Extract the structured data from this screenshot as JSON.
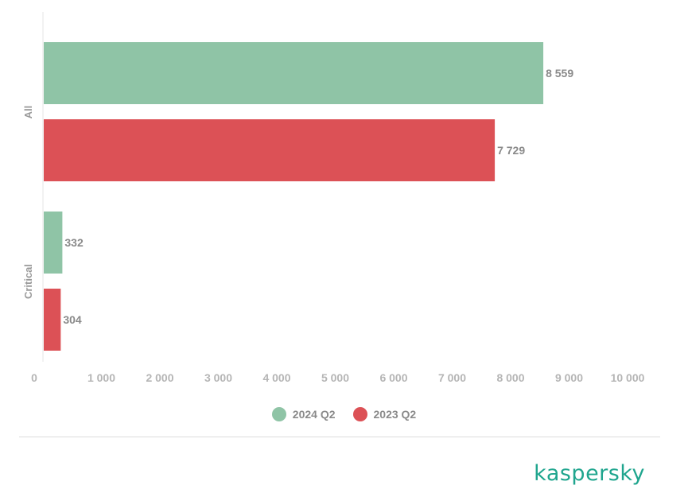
{
  "chart_data": {
    "type": "bar",
    "orientation": "horizontal",
    "categories": [
      "All",
      "Critical"
    ],
    "series": [
      {
        "name": "2024 Q2",
        "values": [
          8559,
          332
        ],
        "labels": [
          "8 559",
          "332"
        ],
        "color": "#8fc4a6"
      },
      {
        "name": "2023 Q2",
        "values": [
          7729,
          304
        ],
        "labels": [
          "7 729",
          "304"
        ],
        "color": "#dc5156"
      }
    ],
    "xlim": [
      0,
      10000
    ],
    "x_ticks": [
      0,
      1000,
      2000,
      3000,
      4000,
      5000,
      6000,
      7000,
      8000,
      9000,
      10000
    ],
    "x_tick_labels": [
      "0",
      "1 000",
      "2 000",
      "3 000",
      "4 000",
      "5 000",
      "6 000",
      "7 000",
      "8 000",
      "9 000",
      "10 000"
    ],
    "legend_position": "bottom-center",
    "grid": false
  },
  "brand": {
    "name": "kaspersky",
    "color": "#1fa58e"
  }
}
